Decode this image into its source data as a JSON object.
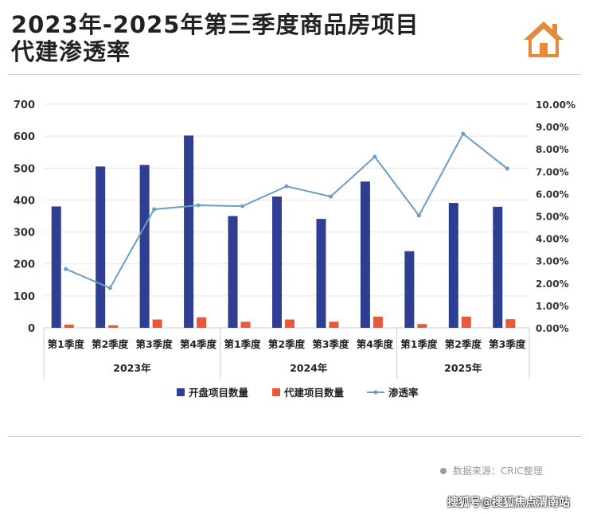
{
  "title_line1": "2023年-2025年第三季度商品房项目",
  "title_line2": "代建渗透率",
  "logo_icon": "house-icon",
  "source": "数据来源：CRIC整理",
  "credit": "搜狐号@搜狐焦点渭南站",
  "colors": {
    "bar1": "#2E3F93",
    "bar2": "#E8593A",
    "line": "#6A9EC2",
    "logo": "#E8893A"
  },
  "chart_data": {
    "type": "bar+line",
    "categories": [
      "第1季度",
      "第2季度",
      "第3季度",
      "第4季度",
      "第1季度",
      "第2季度",
      "第3季度",
      "第4季度",
      "第1季度",
      "第2季度",
      "第3季度"
    ],
    "groups": [
      {
        "label": "2023年",
        "count": 4
      },
      {
        "label": "2024年",
        "count": 4
      },
      {
        "label": "2025年",
        "count": 3
      }
    ],
    "series": [
      {
        "name": "开盘项目数量",
        "type": "bar",
        "axis": "left",
        "values": [
          380,
          505,
          510,
          602,
          350,
          411,
          341,
          458,
          240,
          391,
          379
        ]
      },
      {
        "name": "代建项目数量",
        "type": "bar",
        "axis": "left",
        "values": [
          10,
          8,
          26,
          33,
          19,
          26,
          19,
          35,
          12,
          35,
          27
        ]
      },
      {
        "name": "渗透率",
        "type": "line",
        "axis": "right",
        "values": [
          2.63,
          1.78,
          5.3,
          5.48,
          5.44,
          6.33,
          5.87,
          7.65,
          5.02,
          8.68,
          7.12
        ]
      }
    ],
    "ylim_left": [
      0,
      700
    ],
    "yticks_left": [
      "0",
      "100",
      "200",
      "300",
      "400",
      "500",
      "600",
      "700"
    ],
    "ylim_right": [
      0,
      10
    ],
    "yticks_right": [
      "0.00%",
      "1.00%",
      "2.00%",
      "3.00%",
      "4.00%",
      "5.00%",
      "6.00%",
      "7.00%",
      "8.00%",
      "9.00%",
      "10.00%"
    ],
    "grid": true,
    "legend": "bottom"
  }
}
